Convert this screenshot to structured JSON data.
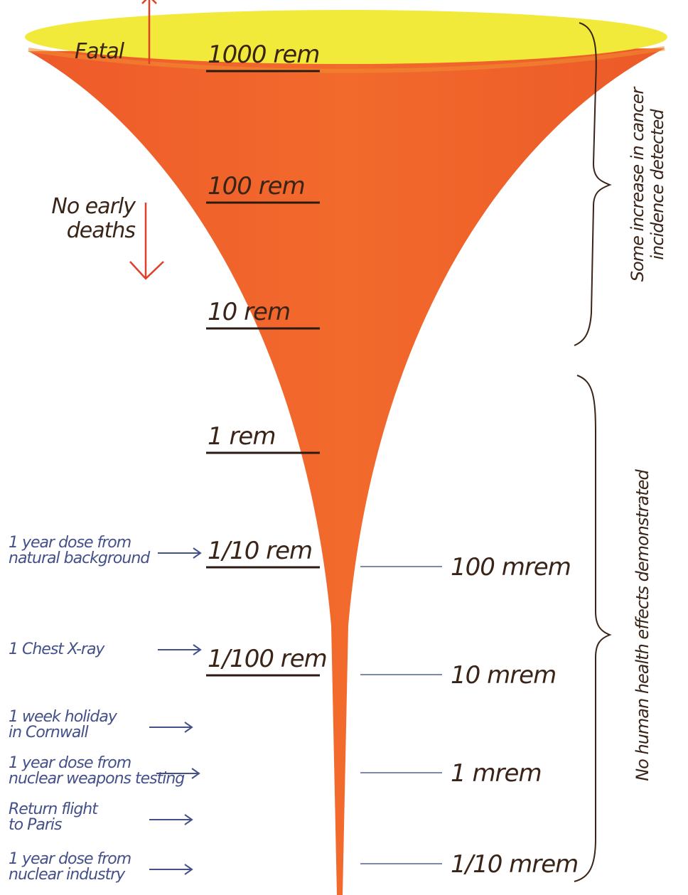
{
  "top_labels": {
    "fatal": "Fatal",
    "no_early_deaths": [
      "No early",
      "deaths"
    ]
  },
  "rem_levels": [
    "1000 rem",
    "100 rem",
    "10 rem",
    "1 rem",
    "1/10 rem",
    "1/100 rem"
  ],
  "mrem_levels": [
    "100 mrem",
    "10 mrem",
    "1 mrem",
    "1/10 mrem"
  ],
  "examples": [
    [
      "1 year dose from",
      "natural background"
    ],
    [
      "1 Chest X-ray"
    ],
    [
      "1 week holiday",
      "in Cornwall"
    ],
    [
      "1 year dose from",
      "nuclear weapons testing"
    ],
    [
      "Return flight",
      "to Paris"
    ],
    [
      "1 year dose from",
      "nuclear industry"
    ]
  ],
  "brackets": {
    "upper": [
      "Some increase in cancer",
      "incidence detected"
    ],
    "lower": "No human health effects demonstrated"
  }
}
